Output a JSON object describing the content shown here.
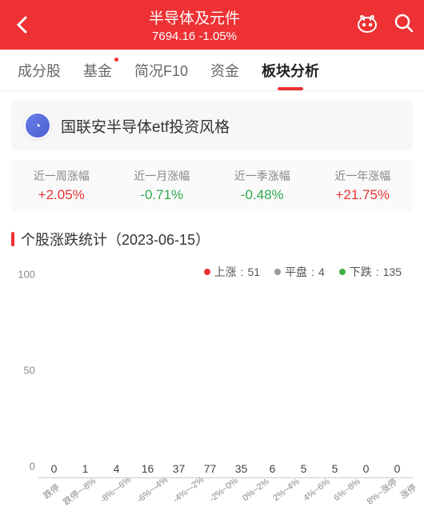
{
  "header": {
    "title": "半导体及元件",
    "index_value": "7694.16",
    "change_pct": "-1.05%"
  },
  "tabs": [
    {
      "label": "成分股",
      "has_dot": false
    },
    {
      "label": "基金",
      "has_dot": true
    },
    {
      "label": "简况F10",
      "has_dot": false
    },
    {
      "label": "资金",
      "has_dot": false
    },
    {
      "label": "板块分析",
      "has_dot": false
    }
  ],
  "active_tab_index": 4,
  "info_card": {
    "text": "国联安半导体etf投资风格",
    "icon_glyph": "◔"
  },
  "metrics": [
    {
      "label": "近一周涨幅",
      "value": "+2.05%",
      "color": "#ed3134"
    },
    {
      "label": "近一月涨幅",
      "value": "-0.71%",
      "color": "#2fa84f"
    },
    {
      "label": "近一季涨幅",
      "value": "-0.48%",
      "color": "#2fa84f"
    },
    {
      "label": "近一年涨幅",
      "value": "+21.75%",
      "color": "#ed3134"
    }
  ],
  "section": {
    "title": "个股涨跌统计（2023-06-15）"
  },
  "legend": {
    "up": {
      "label": "上涨",
      "count": 51,
      "color": "#ed3134"
    },
    "flat": {
      "label": "平盘",
      "count": 4,
      "color": "#9a9a9a"
    },
    "down": {
      "label": "下跌",
      "count": 135,
      "color": "#42b04a"
    }
  },
  "chart": {
    "type": "bar",
    "ylim": [
      0,
      100
    ],
    "yticks": [
      0,
      50,
      100
    ],
    "bar_width_pct": 68,
    "value_fontsize": 14,
    "xlabel_fontsize": 11,
    "xlabel_rotation_deg": -38,
    "colors": {
      "up": "#ed3134",
      "down": "#42b04a",
      "axis": "#cccccc",
      "text": "#444444"
    },
    "bars": [
      {
        "label": "跌停",
        "value": 0,
        "color": "#42b04a"
      },
      {
        "label": "跌停~-8%",
        "value": 1,
        "color": "#42b04a"
      },
      {
        "label": "-8%~-6%",
        "value": 4,
        "color": "#42b04a"
      },
      {
        "label": "-6%~-4%",
        "value": 16,
        "color": "#42b04a"
      },
      {
        "label": "-4%~-2%",
        "value": 37,
        "color": "#42b04a"
      },
      {
        "label": "-2%~0%",
        "value": 77,
        "color": "#42b04a"
      },
      {
        "label": "0%~2%",
        "value": 35,
        "color": "#ed3134"
      },
      {
        "label": "2%~4%",
        "value": 6,
        "color": "#ed3134"
      },
      {
        "label": "4%~6%",
        "value": 5,
        "color": "#ed3134"
      },
      {
        "label": "6%~8%",
        "value": 5,
        "color": "#ed3134"
      },
      {
        "label": "8%~涨停",
        "value": 0,
        "color": "#ed3134"
      },
      {
        "label": "涨停",
        "value": 0,
        "color": "#ed3134"
      }
    ]
  }
}
